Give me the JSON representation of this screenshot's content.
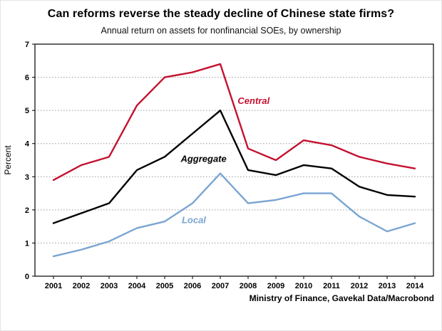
{
  "title": "Can reforms reverse the steady decline of Chinese state firms?",
  "subtitle": "Annual return on assets for nonfinancial SOEs, by ownership",
  "source": "Ministry of Finance, Gavekal Data/Macrobond",
  "colors": {
    "central": "#c41230",
    "aggregate": "#000000",
    "local": "#7aa5d2",
    "grid": "#999999",
    "axis": "#000000"
  },
  "chart_data": {
    "type": "line",
    "title": "Can reforms reverse the steady decline of Chinese state firms?",
    "subtitle": "Annual return on assets for nonfinancial SOEs, by ownership",
    "xlabel": "",
    "ylabel": "Percent",
    "ylim": [
      0,
      7
    ],
    "yticks": [
      0,
      1,
      2,
      3,
      4,
      5,
      6,
      7
    ],
    "grid": "dotted-horizontal",
    "legend_position": "inline-labels",
    "x": [
      2001,
      2002,
      2003,
      2004,
      2005,
      2006,
      2007,
      2008,
      2009,
      2010,
      2011,
      2012,
      2013,
      2014
    ],
    "series": [
      {
        "name": "Central",
        "color": "#c41230",
        "values": [
          2.9,
          3.35,
          3.6,
          5.15,
          6.0,
          6.15,
          6.4,
          3.85,
          3.5,
          4.1,
          3.95,
          3.6,
          3.4,
          3.25
        ]
      },
      {
        "name": "Aggregate",
        "color": "#000000",
        "values": [
          1.6,
          1.9,
          2.2,
          3.2,
          3.6,
          4.3,
          5.0,
          3.2,
          3.05,
          3.35,
          3.25,
          2.7,
          2.45,
          2.4
        ]
      },
      {
        "name": "Local",
        "color": "#7aa5d2",
        "values": [
          0.6,
          0.8,
          1.05,
          1.45,
          1.65,
          2.2,
          3.1,
          2.2,
          2.3,
          2.5,
          2.5,
          1.8,
          1.35,
          1.6
        ]
      }
    ],
    "annotations": [
      {
        "text": "Central",
        "x": 2008.2,
        "y": 5.2,
        "color": "#c41230"
      },
      {
        "text": "Aggregate",
        "x": 2006.4,
        "y": 3.45,
        "color": "#000000"
      },
      {
        "text": "Local",
        "x": 2006.05,
        "y": 1.6,
        "color": "#7aa5d2"
      }
    ]
  }
}
